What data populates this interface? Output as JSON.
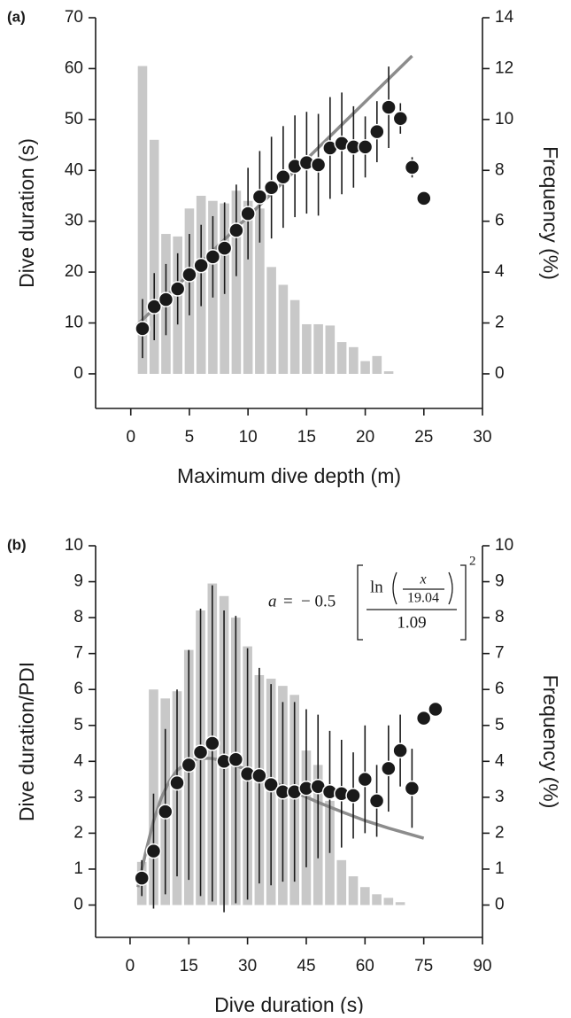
{
  "chart_data": [
    {
      "type": "combo",
      "label": "(a)",
      "xlabel": "Maximum dive depth (m)",
      "ylabel": "Dive duration (s)",
      "y2label": "Frequency (%)",
      "xlim": [
        -3,
        30
      ],
      "ylim": [
        -6.8,
        70
      ],
      "y2lim": [
        -1.36,
        14
      ],
      "xticks": [
        0,
        5,
        10,
        15,
        20,
        25,
        30
      ],
      "yticks": [
        0,
        10,
        20,
        30,
        40,
        50,
        60,
        70
      ],
      "y2ticks": [
        0,
        2,
        4,
        6,
        8,
        10,
        12,
        14
      ],
      "bars": {
        "axis": "y2",
        "color": "#c8c8c8",
        "x": [
          1,
          2,
          3,
          4,
          5,
          6,
          7,
          8,
          9,
          10,
          11,
          12,
          13,
          14,
          15,
          16,
          17,
          18,
          19,
          20,
          21,
          22
        ],
        "values": [
          12.1,
          9.2,
          5.5,
          5.4,
          6.5,
          7.0,
          6.8,
          6.7,
          7.2,
          6.8,
          6.5,
          4.2,
          3.5,
          2.9,
          1.95,
          1.95,
          1.9,
          1.25,
          1.05,
          0.5,
          0.7,
          0.1
        ]
      },
      "points": {
        "color": "#1a1a1a",
        "x": [
          1,
          2,
          3,
          4,
          5,
          6,
          7,
          8,
          9,
          10,
          11,
          12,
          13,
          14,
          15,
          16,
          17,
          18,
          19,
          20,
          21,
          22,
          23,
          24,
          25
        ],
        "values": [
          8.9,
          13.2,
          14.6,
          16.7,
          19.5,
          21.3,
          23,
          24.7,
          28.2,
          31.5,
          34.8,
          36.6,
          38.7,
          40.8,
          41.5,
          41.1,
          44.4,
          45.3,
          44.6,
          44.6,
          47.6,
          52.4,
          50.2,
          40.6,
          34.5
        ],
        "errors": [
          5.8,
          6.6,
          7,
          7,
          8,
          8,
          8,
          9,
          9,
          9,
          9,
          10,
          10,
          10,
          10,
          10,
          10,
          10,
          8,
          6,
          6,
          8,
          3,
          2,
          null
        ]
      },
      "fit": {
        "color": "#8c8c8c",
        "x": [
          0.5,
          24
        ],
        "values": [
          9.5,
          62.5
        ]
      }
    },
    {
      "type": "combo",
      "label": "(b)",
      "xlabel": "Dive duration (s)",
      "ylabel": "Dive duration/PDI",
      "y2label": "Frequency (%)",
      "xlim": [
        -8.8,
        90
      ],
      "ylim": [
        -0.9,
        10
      ],
      "y2lim": [
        -0.9,
        10
      ],
      "xticks": [
        0,
        15,
        30,
        45,
        60,
        75,
        90
      ],
      "yticks": [
        0,
        1,
        2,
        3,
        4,
        5,
        6,
        7,
        8,
        9,
        10
      ],
      "y2ticks": [
        0,
        1,
        2,
        3,
        4,
        5,
        6,
        7,
        8,
        9,
        10
      ],
      "bars": {
        "axis": "y2",
        "color": "#c8c8c8",
        "x": [
          3,
          6,
          9,
          12,
          15,
          18,
          21,
          24,
          27,
          30,
          33,
          36,
          39,
          42,
          45,
          48,
          51,
          54,
          57,
          60,
          63,
          66,
          69
        ],
        "values": [
          1.2,
          6.0,
          5.75,
          5.95,
          7.1,
          8.2,
          8.95,
          8.6,
          8.0,
          7.2,
          6.4,
          6.3,
          6.1,
          5.85,
          4.3,
          3.9,
          2.9,
          1.25,
          0.8,
          0.5,
          0.3,
          0.2,
          0.08
        ]
      },
      "points": {
        "color": "#1a1a1a",
        "x": [
          3,
          6,
          9,
          12,
          15,
          18,
          21,
          24,
          27,
          30,
          33,
          36,
          39,
          42,
          45,
          48,
          51,
          54,
          57,
          60,
          63,
          66,
          69,
          72,
          75,
          78
        ],
        "values": [
          0.75,
          1.5,
          2.6,
          3.4,
          3.9,
          4.25,
          4.5,
          4.0,
          4.05,
          3.65,
          3.6,
          3.35,
          3.15,
          3.15,
          3.25,
          3.3,
          3.15,
          3.1,
          3.05,
          3.5,
          2.9,
          3.8,
          4.3,
          3.25,
          5.2,
          5.45
        ],
        "errors": [
          0.5,
          1.6,
          2.3,
          2.6,
          3.2,
          4,
          4.4,
          4.2,
          4,
          3.5,
          3,
          2.8,
          2.5,
          2.5,
          2.2,
          2,
          1.7,
          1.5,
          1.2,
          1.5,
          1,
          1.2,
          1,
          1.1,
          null,
          null
        ]
      },
      "fit": {
        "color": "#8c8c8c",
        "x": [
          2,
          4,
          6,
          8,
          10,
          12,
          15,
          18,
          21,
          24,
          30,
          36,
          42,
          48,
          54,
          60,
          66,
          75
        ],
        "values": [
          0.5,
          1.47,
          2.34,
          2.99,
          3.44,
          3.75,
          4.0,
          4.09,
          4.08,
          4.0,
          3.76,
          3.46,
          3.15,
          2.86,
          2.6,
          2.35,
          2.14,
          1.86
        ]
      },
      "annotation": {
        "lhs": "a",
        "eq": "=",
        "coef": "− 0.5",
        "fn": "ln",
        "num": "x",
        "den": "19.04",
        "outer_den": "1.09",
        "power": "2"
      }
    }
  ]
}
